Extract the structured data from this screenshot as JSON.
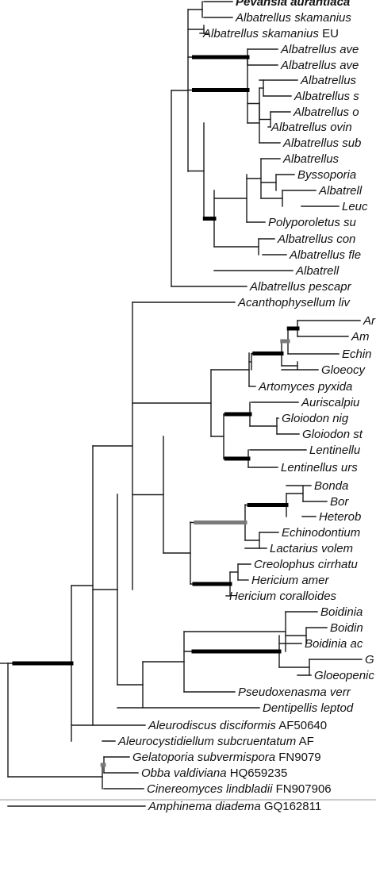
{
  "colors": {
    "branch": "#1a1a1a",
    "support_high": "#000000",
    "support_mid": "#7a7a7a",
    "label": "#111111"
  },
  "taxa": [
    {
      "species": "Pevansia aurantiaca",
      "accession": "",
      "bold": true
    },
    {
      "species": "Albatrellus skamanius",
      "accession": ""
    },
    {
      "species": "Albatrellus skamanius",
      "accession": "EU"
    },
    {
      "species": "Albatrellus ave",
      "accession": ""
    },
    {
      "species": "Albatrellus ave",
      "accession": ""
    },
    {
      "species": "Albatrellus",
      "accession": ""
    },
    {
      "species": "Albatrellus s",
      "accession": ""
    },
    {
      "species": "Albatrellus o",
      "accession": ""
    },
    {
      "species": "Albatrellus ovin",
      "accession": ""
    },
    {
      "species": "Albatrellus sub",
      "accession": ""
    },
    {
      "species": "Albatrellus",
      "accession": ""
    },
    {
      "species": "Byssoporia",
      "accession": ""
    },
    {
      "species": "Albatrell",
      "accession": ""
    },
    {
      "species": "Leuc",
      "accession": ""
    },
    {
      "species": "Polyporoletus su",
      "accession": ""
    },
    {
      "species": "Albatrellus con",
      "accession": ""
    },
    {
      "species": "Albatrellus fle",
      "accession": ""
    },
    {
      "species": "Albatrell",
      "accession": ""
    },
    {
      "species": "Albatrellus pescapr",
      "accession": ""
    },
    {
      "species": "Acanthophysellum liv",
      "accession": ""
    },
    {
      "species": "Ar",
      "accession": ""
    },
    {
      "species": "Am",
      "accession": ""
    },
    {
      "species": "Echin",
      "accession": ""
    },
    {
      "species": "Gloeocy",
      "accession": ""
    },
    {
      "species": "Artomyces pyxida",
      "accession": ""
    },
    {
      "species": "Auriscalpiu",
      "accession": ""
    },
    {
      "species": "Gloiodon nig",
      "accession": ""
    },
    {
      "species": "Gloiodon st",
      "accession": ""
    },
    {
      "species": "Lentinellu",
      "accession": ""
    },
    {
      "species": "Lentinellus urs",
      "accession": ""
    },
    {
      "species": "Bonda",
      "accession": ""
    },
    {
      "species": "Bor",
      "accession": ""
    },
    {
      "species": "Heterob",
      "accession": ""
    },
    {
      "species": "Echinodontium",
      "accession": ""
    },
    {
      "species": "Lactarius volem",
      "accession": ""
    },
    {
      "species": "Creolophus cirrhatu",
      "accession": ""
    },
    {
      "species": "Hericium amer",
      "accession": ""
    },
    {
      "species": "Hericium coralloides",
      "accession": ""
    },
    {
      "species": "Boidinia",
      "accession": ""
    },
    {
      "species": "Boidin",
      "accession": ""
    },
    {
      "species": "Boidinia ac",
      "accession": ""
    },
    {
      "species": "G",
      "accession": ""
    },
    {
      "species": "Gloeopenic",
      "accession": ""
    },
    {
      "species": "Pseudoxenasma verr",
      "accession": ""
    },
    {
      "species": "Dentipellis leptod",
      "accession": ""
    },
    {
      "species": "Aleurodiscus disciformis",
      "accession": "AF50640"
    },
    {
      "species": "Aleurocystidiellum subcruentatum",
      "accession": "AF"
    },
    {
      "species": "Gelatoporia subvermispora",
      "accession": "FN9079"
    },
    {
      "species": "Obba valdiviana",
      "accession": "HQ659235"
    },
    {
      "species": "Cinereomyces lindbladii",
      "accession": "FN907906"
    },
    {
      "species": "Amphinema diadema",
      "accession": "GQ162811"
    }
  ]
}
